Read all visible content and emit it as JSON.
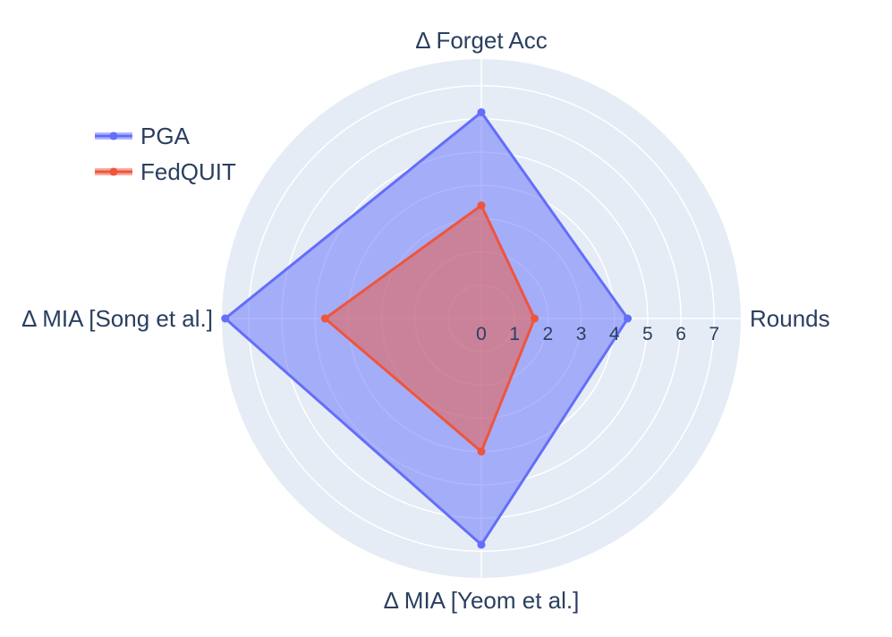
{
  "chart_data": {
    "type": "radar",
    "title": "",
    "axes": [
      "Rounds",
      "Δ Forget Acc",
      "Δ MIA [Song et al.]",
      "Δ MIA [Yeom et al.]"
    ],
    "radial_range": [
      0,
      7.8
    ],
    "radial_ticks": [
      "0",
      "1",
      "2",
      "3",
      "4",
      "5",
      "6",
      "7"
    ],
    "grid": true,
    "legend_position": "top-left",
    "colors": {
      "background": "#e5ecf6",
      "grid": "#ffffff",
      "text": "#2a3f5f"
    },
    "series": [
      {
        "name": "PGA",
        "color": "#636efa",
        "fill": "rgba(99,110,250,0.5)",
        "values": [
          4.4,
          6.2,
          7.7,
          6.8
        ]
      },
      {
        "name": "FedQUIT",
        "color": "#ef553b",
        "fill": "rgba(239,85,59,0.5)",
        "values": [
          1.6,
          3.4,
          4.7,
          4.0
        ]
      }
    ]
  }
}
